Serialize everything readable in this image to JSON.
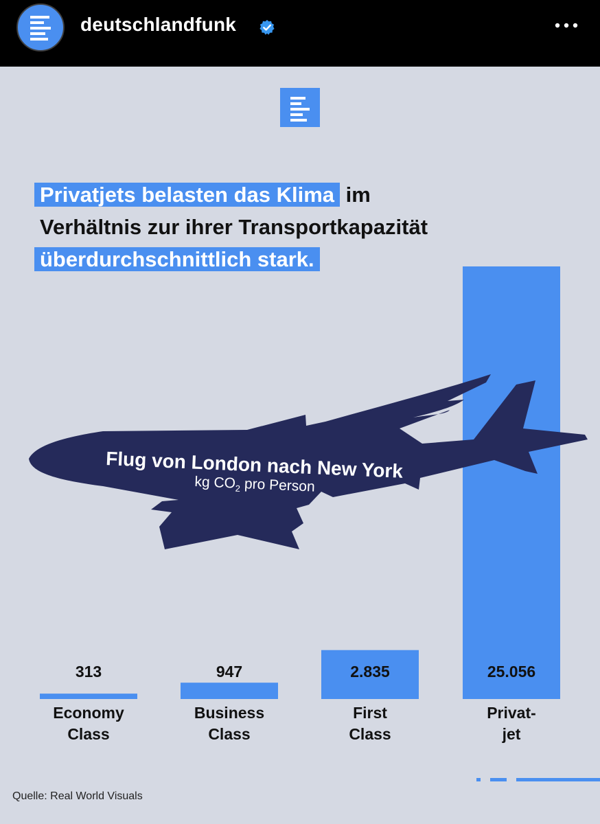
{
  "header": {
    "account_name": "deutschlandfunk",
    "verified_icon": "verified-badge-icon",
    "more_icon": "more-horizontal-icon"
  },
  "headline": {
    "line1_highlight": "Privatjets belasten das Klima",
    "line1_rest": "im",
    "line2": "Verhältnis zur ihrer Transportkapazität",
    "line3_highlight": "überdurchschnittlich stark."
  },
  "plane": {
    "title": "Flug von London nach New York",
    "subtitle_pre": "kg CO",
    "subtitle_sub": "2",
    "subtitle_post": " pro Person"
  },
  "chart_data": {
    "type": "bar",
    "title": "Flug von London nach New York",
    "ylabel": "kg CO2 pro Person",
    "categories": [
      [
        "Economy",
        "Class"
      ],
      [
        "Business",
        "Class"
      ],
      [
        "First",
        "Class"
      ],
      [
        "Privat-",
        "jet"
      ]
    ],
    "values": [
      313,
      947,
      2835,
      25056
    ],
    "value_labels": [
      "313",
      "947",
      "2.835",
      "25.056"
    ],
    "ylim": [
      0,
      25056
    ],
    "grid": false
  },
  "source": "Quelle: Real World Visuals",
  "colors": {
    "accent": "#4a8ff0",
    "plane": "#252a5a",
    "background": "#d5d9e3",
    "topbar": "#000000"
  }
}
